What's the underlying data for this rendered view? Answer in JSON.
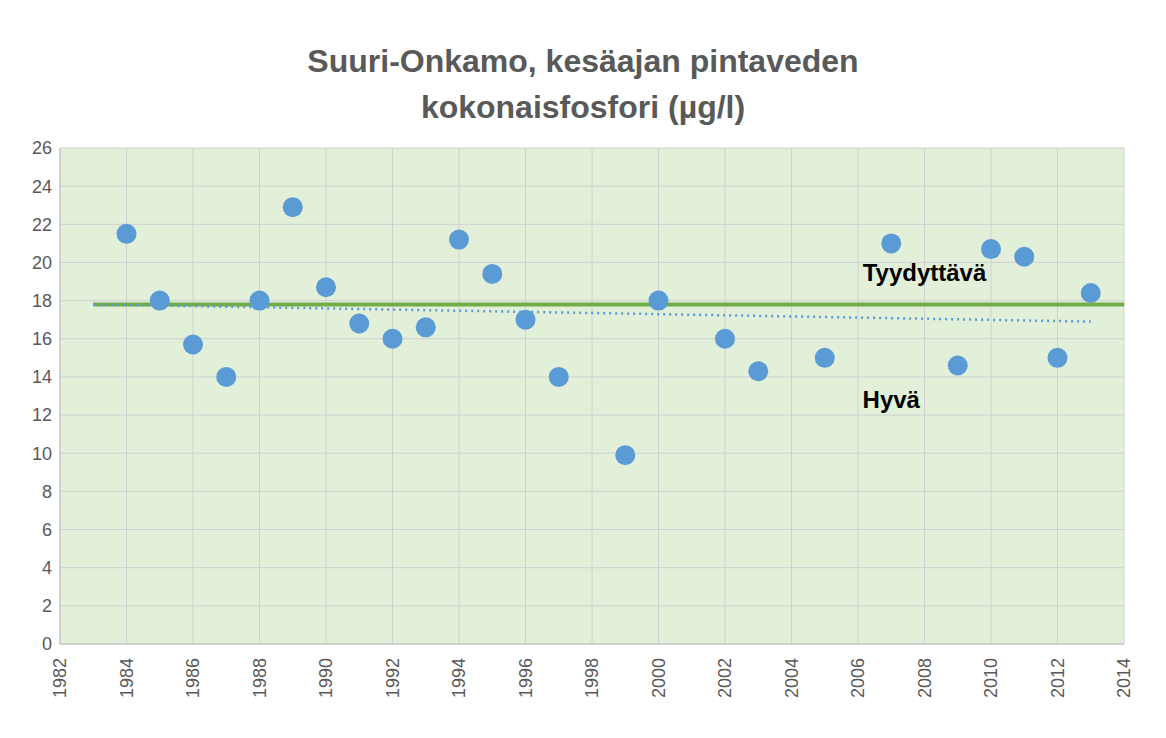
{
  "chart_data": {
    "type": "scatter",
    "title": "Suuri-Onkamo, kesäajan pintaveden kokonaisfosfori (µg/l)",
    "xlim": [
      1982,
      2014
    ],
    "xticks": [
      1982,
      1984,
      1986,
      1988,
      1990,
      1992,
      1994,
      1996,
      1998,
      2000,
      2002,
      2004,
      2006,
      2008,
      2010,
      2012,
      2014
    ],
    "ylim": [
      0,
      26
    ],
    "yticks": [
      0,
      2,
      4,
      6,
      8,
      10,
      12,
      14,
      16,
      18,
      20,
      22,
      24,
      26
    ],
    "grid": true,
    "series": [
      {
        "type": "scatter",
        "color": "#5b9bd5",
        "marker": "circle",
        "x": [
          1984,
          1985,
          1986,
          1987,
          1988,
          1989,
          1990,
          1991,
          1992,
          1993,
          1994,
          1995,
          1996,
          1997,
          1999,
          2000,
          2002,
          2003,
          2005,
          2007,
          2009,
          2010,
          2011,
          2012,
          2013
        ],
        "values": [
          21.5,
          18,
          15.7,
          14,
          18,
          22.9,
          18.7,
          16.8,
          16,
          16.6,
          21.2,
          19.4,
          17,
          14,
          9.9,
          18,
          16,
          14.3,
          15,
          21,
          14.6,
          20.7,
          20.3,
          15,
          18.4
        ]
      },
      {
        "type": "line",
        "color": "#70ad47",
        "line_style": "solid",
        "x": [
          1983,
          2014
        ],
        "values": [
          17.8,
          17.8
        ]
      },
      {
        "type": "line",
        "color": "#5b9bd5",
        "line_style": "dotted",
        "x": [
          1983,
          2013
        ],
        "values": [
          17.8,
          16.9
        ]
      }
    ],
    "annotations": [
      {
        "text": "Tyydyttävä",
        "x": 2008,
        "y": 19.5
      },
      {
        "text": "Hyvä",
        "x": 2007,
        "y": 12.8
      }
    ]
  }
}
